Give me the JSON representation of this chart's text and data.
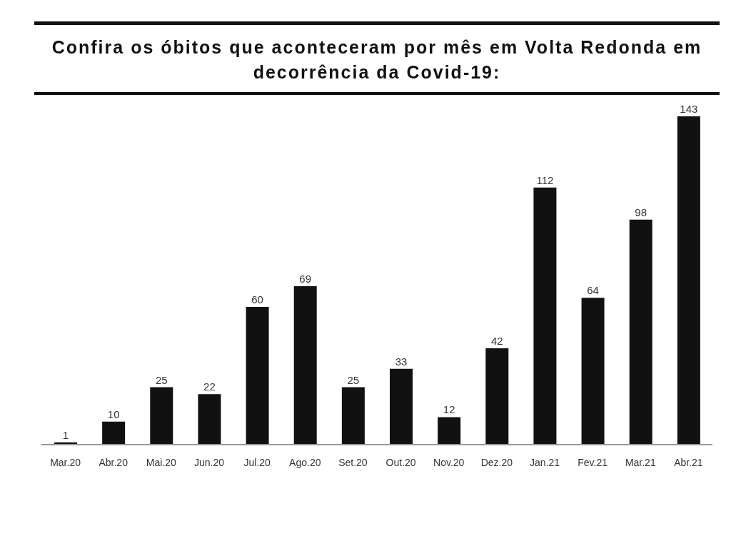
{
  "chart_data": {
    "type": "bar",
    "title": "Confira os óbitos que aconteceram por mês em Volta Redonda em decorrência da Covid-19:",
    "categories": [
      "Mar.20",
      "Abr.20",
      "Mai.20",
      "Jun.20",
      "Jul.20",
      "Ago.20",
      "Set.20",
      "Out.20",
      "Nov.20",
      "Dez.20",
      "Jan.21",
      "Fev.21",
      "Mar.21",
      "Abr.21"
    ],
    "values": [
      1,
      10,
      25,
      22,
      60,
      69,
      25,
      33,
      12,
      42,
      112,
      64,
      98,
      143
    ],
    "color": "#111111",
    "data_labels": true,
    "grid": false,
    "legend": false
  }
}
